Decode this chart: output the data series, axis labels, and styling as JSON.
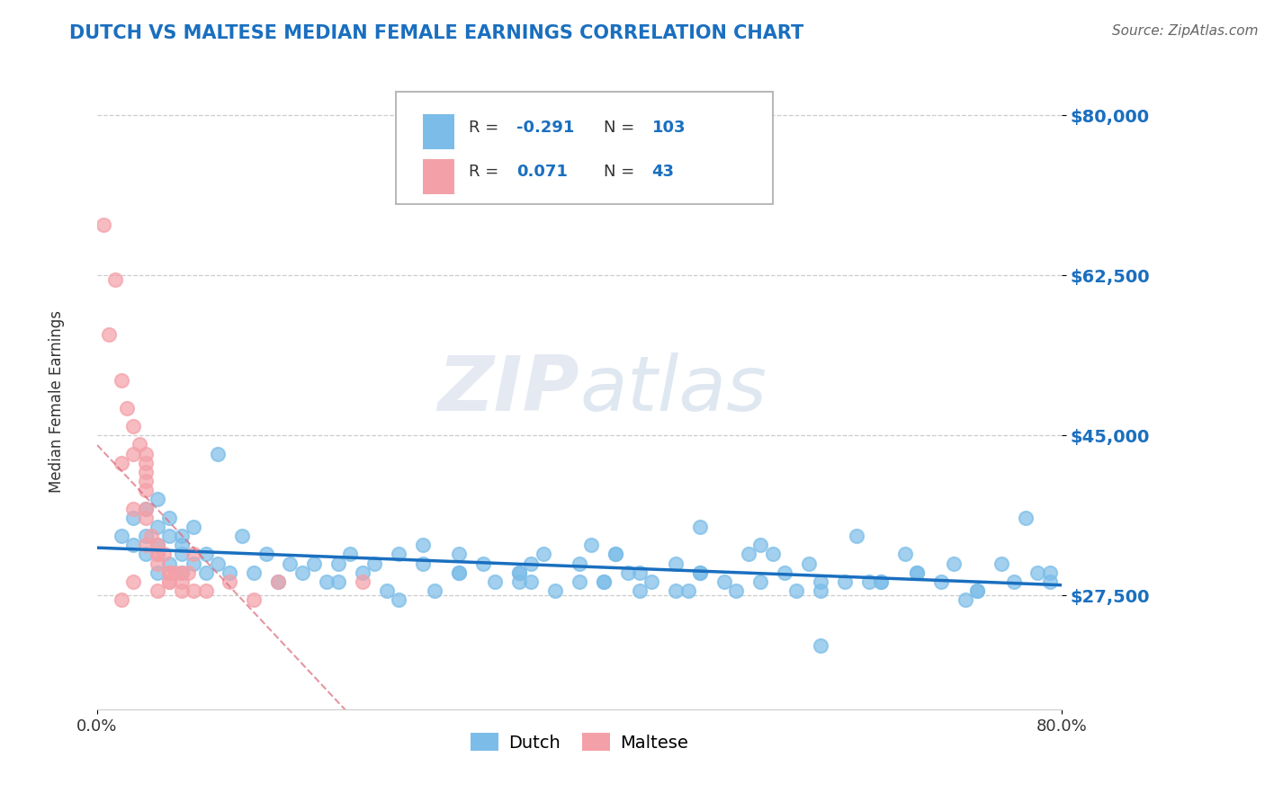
{
  "title": "DUTCH VS MALTESE MEDIAN FEMALE EARNINGS CORRELATION CHART",
  "source_text": "Source: ZipAtlas.com",
  "ylabel": "Median Female Earnings",
  "xmin": 0.0,
  "xmax": 0.8,
  "ymin": 15000,
  "ymax": 85000,
  "yticks": [
    27500,
    45000,
    62500,
    80000
  ],
  "ytick_labels": [
    "$27,500",
    "$45,000",
    "$62,500",
    "$80,000"
  ],
  "xtick_labels": [
    "0.0%",
    "80.0%"
  ],
  "watermark_zip": "ZIP",
  "watermark_atlas": "atlas",
  "legend_r_dutch": "-0.291",
  "legend_n_dutch": "103",
  "legend_r_maltese": "0.071",
  "legend_n_maltese": "43",
  "dutch_color": "#7bbde8",
  "maltese_color": "#f4a0a8",
  "trendline_dutch_color": "#1a6fbf",
  "trendline_maltese_color": "#d9697a",
  "background_color": "#ffffff",
  "title_color": "#1a6fbf",
  "ytick_color": "#1a6fbf",
  "dutch_points_x": [
    0.02,
    0.03,
    0.03,
    0.04,
    0.04,
    0.04,
    0.05,
    0.05,
    0.05,
    0.05,
    0.06,
    0.06,
    0.06,
    0.07,
    0.07,
    0.07,
    0.07,
    0.08,
    0.08,
    0.09,
    0.09,
    0.1,
    0.1,
    0.11,
    0.12,
    0.13,
    0.14,
    0.15,
    0.16,
    0.17,
    0.18,
    0.19,
    0.2,
    0.21,
    0.22,
    0.23,
    0.24,
    0.25,
    0.27,
    0.28,
    0.3,
    0.32,
    0.33,
    0.35,
    0.36,
    0.37,
    0.38,
    0.4,
    0.41,
    0.42,
    0.43,
    0.44,
    0.45,
    0.46,
    0.48,
    0.49,
    0.5,
    0.52,
    0.53,
    0.55,
    0.56,
    0.57,
    0.59,
    0.6,
    0.62,
    0.63,
    0.65,
    0.67,
    0.68,
    0.7,
    0.72,
    0.73,
    0.75,
    0.76,
    0.77,
    0.78,
    0.79,
    0.79,
    0.3,
    0.35,
    0.4,
    0.45,
    0.5,
    0.55,
    0.6,
    0.65,
    0.27,
    0.35,
    0.42,
    0.48,
    0.54,
    0.6,
    0.68,
    0.73,
    0.2,
    0.25,
    0.3,
    0.36,
    0.43,
    0.5,
    0.58,
    0.64,
    0.71
  ],
  "dutch_points_y": [
    34000,
    36000,
    33000,
    37000,
    34000,
    32000,
    38000,
    35000,
    33000,
    30000,
    36000,
    34000,
    31000,
    34000,
    33000,
    32000,
    30000,
    35000,
    31000,
    32000,
    30000,
    43000,
    31000,
    30000,
    34000,
    30000,
    32000,
    29000,
    31000,
    30000,
    31000,
    29000,
    31000,
    32000,
    30000,
    31000,
    28000,
    32000,
    33000,
    28000,
    30000,
    31000,
    29000,
    30000,
    31000,
    32000,
    28000,
    29000,
    33000,
    29000,
    32000,
    30000,
    30000,
    29000,
    31000,
    28000,
    35000,
    29000,
    28000,
    29000,
    32000,
    30000,
    31000,
    22000,
    29000,
    34000,
    29000,
    32000,
    30000,
    29000,
    27000,
    28000,
    31000,
    29000,
    36000,
    30000,
    30000,
    29000,
    32000,
    29000,
    31000,
    28000,
    30000,
    33000,
    28000,
    29000,
    31000,
    30000,
    29000,
    28000,
    32000,
    29000,
    30000,
    28000,
    29000,
    27000,
    30000,
    29000,
    32000,
    30000,
    28000,
    29000,
    31000
  ],
  "maltese_points_x": [
    0.005,
    0.01,
    0.015,
    0.02,
    0.02,
    0.02,
    0.025,
    0.03,
    0.03,
    0.03,
    0.03,
    0.035,
    0.04,
    0.04,
    0.04,
    0.04,
    0.04,
    0.04,
    0.04,
    0.04,
    0.045,
    0.05,
    0.05,
    0.05,
    0.05,
    0.05,
    0.055,
    0.06,
    0.06,
    0.06,
    0.06,
    0.065,
    0.07,
    0.07,
    0.07,
    0.075,
    0.08,
    0.08,
    0.09,
    0.11,
    0.13,
    0.15,
    0.22
  ],
  "maltese_points_y": [
    68000,
    56000,
    62000,
    51000,
    42000,
    27000,
    48000,
    46000,
    43000,
    37000,
    29000,
    44000,
    43000,
    42000,
    41000,
    40000,
    39000,
    37000,
    36000,
    33000,
    34000,
    33000,
    32000,
    32000,
    31000,
    28000,
    32000,
    30000,
    30000,
    29000,
    29000,
    30000,
    30000,
    29000,
    28000,
    30000,
    28000,
    32000,
    28000,
    29000,
    27000,
    29000,
    29000
  ]
}
